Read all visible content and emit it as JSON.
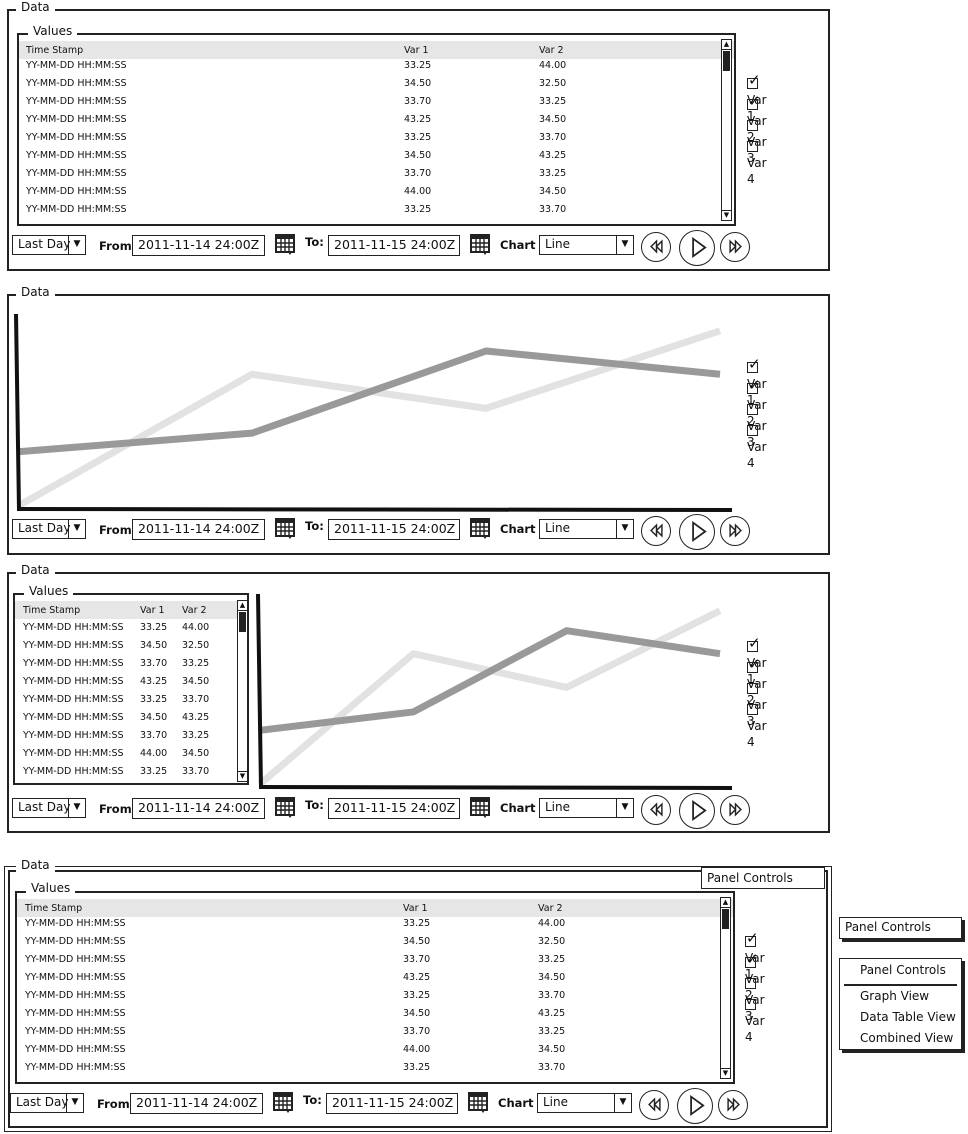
{
  "panel_title": "Data",
  "values_title": "Values",
  "table": {
    "headers": [
      "Time Stamp",
      "Var 1",
      "Var 2"
    ],
    "rows": [
      [
        "YY-MM-DD HH:MM:SS",
        "33.25",
        "44.00"
      ],
      [
        "YY-MM-DD HH:MM:SS",
        "34.50",
        "32.50"
      ],
      [
        "YY-MM-DD HH:MM:SS",
        "33.70",
        "33.25"
      ],
      [
        "YY-MM-DD HH:MM:SS",
        "43.25",
        "34.50"
      ],
      [
        "YY-MM-DD HH:MM:SS",
        "33.25",
        "33.70"
      ],
      [
        "YY-MM-DD HH:MM:SS",
        "34.50",
        "43.25"
      ],
      [
        "YY-MM-DD HH:MM:SS",
        "33.70",
        "33.25"
      ],
      [
        "YY-MM-DD HH:MM:SS",
        "44.00",
        "34.50"
      ],
      [
        "YY-MM-DD HH:MM:SS",
        "33.25",
        "33.70"
      ]
    ]
  },
  "variables": [
    {
      "label": "Var 1",
      "checked": true
    },
    {
      "label": "Var 2",
      "checked": true
    },
    {
      "label": "Var 3",
      "checked": false
    },
    {
      "label": "Var 4",
      "checked": false
    }
  ],
  "controls": {
    "range_selected": "Last Day",
    "from_label": "From",
    "from_value": "2011-11-14 24:00Z",
    "to_label": "To:",
    "to_value": "2011-11-15 24:00Z",
    "chart_label": "Chart",
    "chart_type_selected": "Line",
    "rewind_icon": "rewind-icon",
    "play_icon": "play-icon",
    "fast_forward_icon": "fast-forward-icon",
    "calendar_icon": "calendar-icon"
  },
  "panel_controls": {
    "button_label": "Panel Controls",
    "menu_title": "Panel Controls",
    "menu_items": [
      "Graph View",
      "Data Table View",
      "Combined View"
    ]
  },
  "chart_data": {
    "type": "line",
    "x": [
      0,
      1,
      2,
      3
    ],
    "series": [
      {
        "color": "#999999",
        "values": [
          0.35,
          0.47,
          1.0,
          0.85
        ]
      },
      {
        "color": "#e2e2e2",
        "values": [
          0.0,
          0.85,
          0.63,
          1.13
        ]
      }
    ],
    "ylim": [
      0,
      1.2
    ],
    "legend_placement": "none",
    "grid": false
  },
  "colors": {
    "line_dark": "#999999",
    "line_light": "#e2e2e2",
    "table_header_bg": "#e6e6e6"
  }
}
